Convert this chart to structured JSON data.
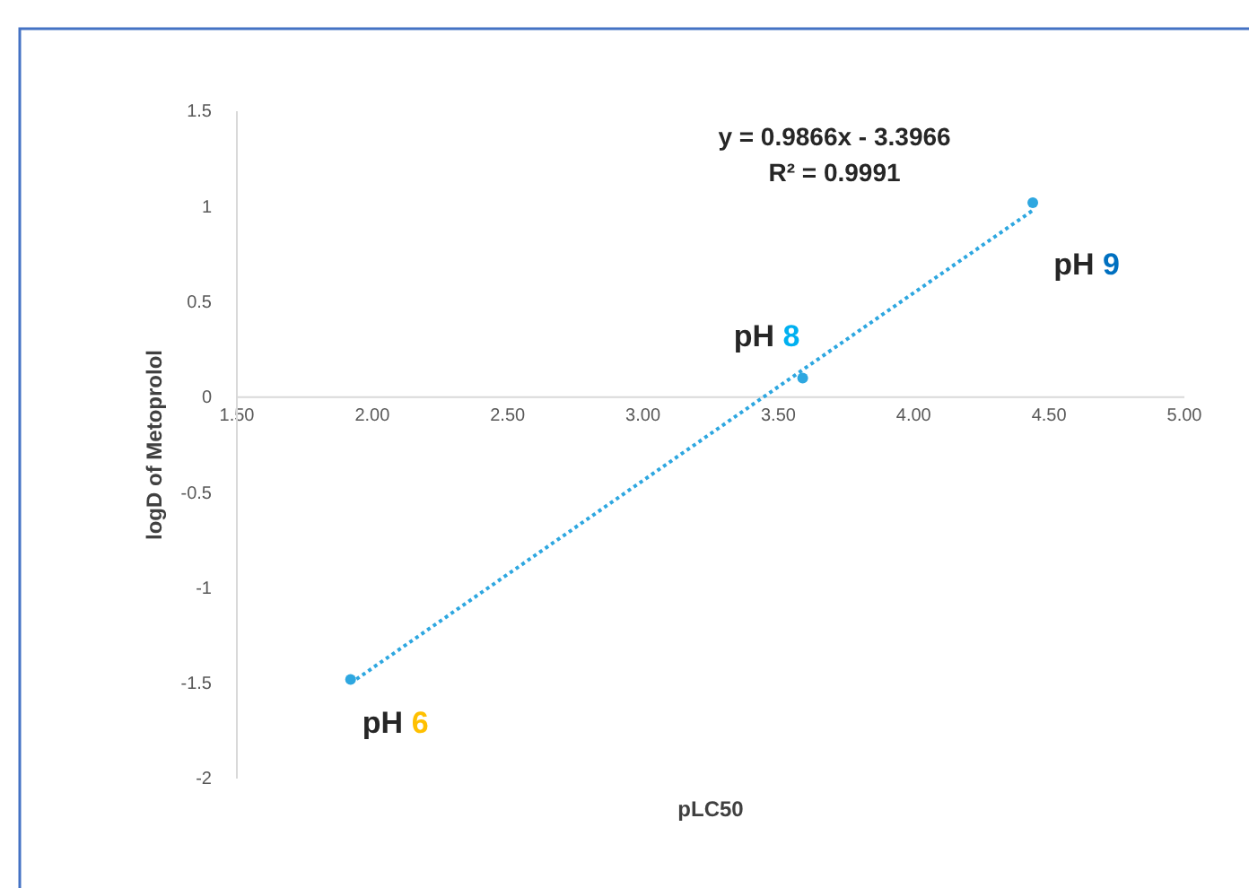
{
  "chart_data": {
    "type": "scatter",
    "xlabel": "pLC50",
    "ylabel": "logD of Metoprolol",
    "xlim": [
      1.5,
      5.0
    ],
    "ylim": [
      -2,
      1.5
    ],
    "xticks": [
      {
        "value": 1.5,
        "label": "1.50"
      },
      {
        "value": 2,
        "label": "2.00"
      },
      {
        "value": 2.5,
        "label": "2.50"
      },
      {
        "value": 3,
        "label": "3.00"
      },
      {
        "value": 3.5,
        "label": "3.50"
      },
      {
        "value": 4,
        "label": "4.00"
      },
      {
        "value": 4.5,
        "label": "4.50"
      },
      {
        "value": 5,
        "label": "5.00"
      }
    ],
    "yticks": [
      -2,
      -1.5,
      -1,
      -0.5,
      0,
      0.5,
      1,
      1.5
    ],
    "grid": false,
    "marker": "circle",
    "series": [
      {
        "color": "#2ea7e0",
        "x": [
          1.92,
          3.59,
          4.44
        ],
        "values": [
          -1.48,
          0.1,
          1.02
        ]
      },
      {
        "type": "line",
        "color": "#2ea7e0",
        "line_style": "dotted",
        "marker": "none",
        "x": [
          1.92,
          4.44
        ],
        "values": [
          -1.5,
          0.98
        ]
      }
    ],
    "annotations": [
      {
        "text": "pH 6",
        "x": 1.92,
        "y": -1.48
      },
      {
        "text": "pH 8",
        "x": 3.59,
        "y": 0.1
      },
      {
        "text": "pH 9",
        "x": 4.44,
        "y": 1.02
      },
      "y = 0.9866x - 3.3966",
      "R² = 0.9991"
    ]
  }
}
